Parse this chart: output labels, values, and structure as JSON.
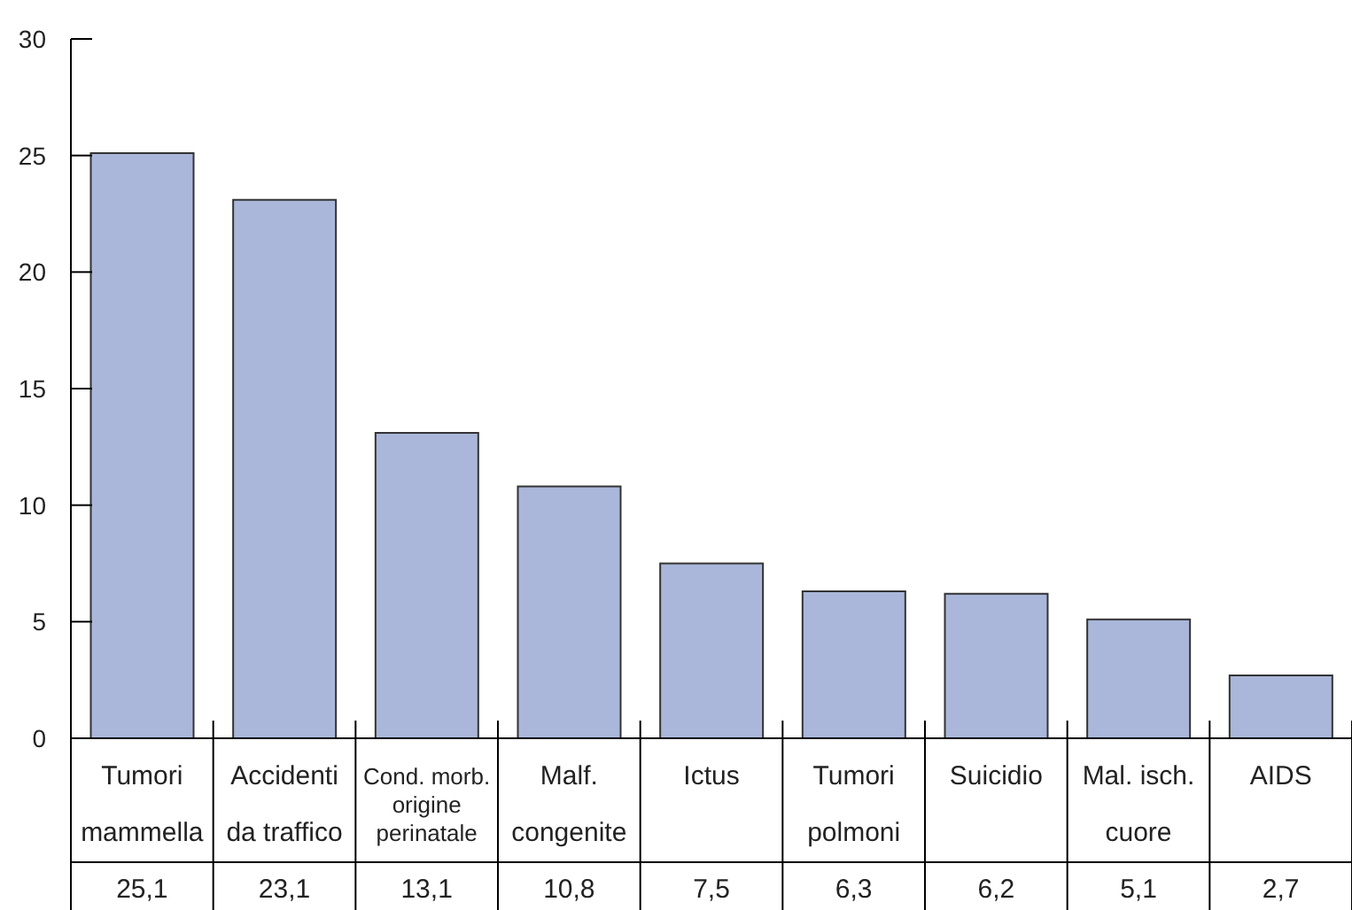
{
  "chart_data": {
    "type": "bar",
    "categories": [
      "Tumori\nmammella",
      "Accidenti\nda traffico",
      "Cond. morb.\norigine\nperinatale",
      "Malf.\ncongenite",
      "Ictus",
      "Tumori\npolmoni",
      "Suicidio",
      "Mal. isch.\ncuore",
      "AIDS"
    ],
    "values": [
      25.1,
      23.1,
      13.1,
      10.8,
      7.5,
      6.3,
      6.2,
      5.1,
      2.7
    ],
    "value_labels": [
      "25,1",
      "23,1",
      "13,1",
      "10,8",
      "7,5",
      "6,3",
      "6,2",
      "5,1",
      "2,7"
    ],
    "color": "#aab7da",
    "ylim": [
      0,
      30
    ],
    "yticks": [
      0,
      5,
      10,
      15,
      20,
      25,
      30
    ],
    "grid": false
  }
}
